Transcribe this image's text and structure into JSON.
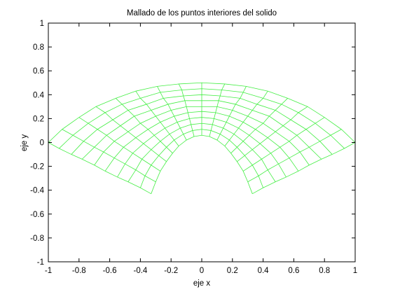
{
  "chart_data": {
    "type": "mesh",
    "title": "Mallado de los puntos interiores del solido",
    "xlabel": "eje x",
    "ylabel": "eje y",
    "color": "#44ee44",
    "xlim": [
      -1,
      1
    ],
    "ylim": [
      -1,
      1
    ],
    "xticks": [
      -1,
      -0.8,
      -0.6,
      -0.4,
      -0.2,
      0,
      0.2,
      0.4,
      0.6,
      0.8,
      1
    ],
    "yticks": [
      -1,
      -0.8,
      -0.6,
      -0.4,
      -0.2,
      0,
      0.2,
      0.4,
      0.6,
      0.8,
      1
    ],
    "x": [
      [
        -0.33,
        -0.3,
        -0.27,
        -0.23,
        -0.19,
        -0.15,
        -0.1,
        -0.05,
        0,
        0.05,
        0.1,
        0.15,
        0.19,
        0.23,
        0.27,
        0.3,
        0.33
      ],
      [
        -0.4,
        -0.37,
        -0.33,
        -0.28,
        -0.23,
        -0.18,
        -0.12,
        -0.06,
        0,
        0.06,
        0.12,
        0.18,
        0.23,
        0.28,
        0.33,
        0.37,
        0.4
      ],
      [
        -0.48,
        -0.43,
        -0.39,
        -0.33,
        -0.27,
        -0.21,
        -0.14,
        -0.07,
        0,
        0.07,
        0.14,
        0.21,
        0.27,
        0.33,
        0.39,
        0.43,
        0.48
      ],
      [
        -0.55,
        -0.5,
        -0.45,
        -0.38,
        -0.31,
        -0.24,
        -0.16,
        -0.08,
        0,
        0.08,
        0.16,
        0.24,
        0.31,
        0.38,
        0.45,
        0.5,
        0.55
      ],
      [
        -0.63,
        -0.57,
        -0.51,
        -0.43,
        -0.35,
        -0.27,
        -0.18,
        -0.09,
        0,
        0.09,
        0.18,
        0.27,
        0.35,
        0.43,
        0.51,
        0.57,
        0.63
      ],
      [
        -0.7,
        -0.64,
        -0.57,
        -0.48,
        -0.4,
        -0.3,
        -0.2,
        -0.1,
        0,
        0.1,
        0.2,
        0.3,
        0.4,
        0.48,
        0.57,
        0.64,
        0.7
      ],
      [
        -0.78,
        -0.7,
        -0.62,
        -0.53,
        -0.44,
        -0.33,
        -0.22,
        -0.11,
        0,
        0.11,
        0.22,
        0.33,
        0.44,
        0.53,
        0.62,
        0.7,
        0.78
      ],
      [
        -0.85,
        -0.77,
        -0.68,
        -0.58,
        -0.48,
        -0.36,
        -0.25,
        -0.12,
        0,
        0.12,
        0.25,
        0.36,
        0.48,
        0.58,
        0.68,
        0.77,
        0.85
      ],
      [
        -0.93,
        -0.84,
        -0.74,
        -0.63,
        -0.52,
        -0.4,
        -0.27,
        -0.13,
        0,
        0.13,
        0.27,
        0.4,
        0.52,
        0.63,
        0.74,
        0.84,
        0.93
      ],
      [
        -1,
        -0.91,
        -0.8,
        -0.69,
        -0.56,
        -0.43,
        -0.29,
        -0.15,
        0,
        0.15,
        0.29,
        0.43,
        0.56,
        0.69,
        0.8,
        0.91,
        1
      ]
    ],
    "y": [
      [
        -0.43,
        -0.33,
        -0.24,
        -0.16,
        -0.09,
        -0.03,
        0.02,
        0.05,
        0.06,
        0.05,
        0.02,
        -0.03,
        -0.09,
        -0.16,
        -0.24,
        -0.33,
        -0.43
      ],
      [
        -0.38,
        -0.28,
        -0.19,
        -0.11,
        -0.04,
        0.02,
        0.07,
        0.1,
        0.11,
        0.1,
        0.07,
        0.02,
        -0.04,
        -0.11,
        -0.19,
        -0.28,
        -0.38
      ],
      [
        -0.33,
        -0.23,
        -0.14,
        -0.06,
        0.01,
        0.07,
        0.12,
        0.15,
        0.16,
        0.15,
        0.12,
        0.07,
        0.01,
        -0.06,
        -0.14,
        -0.23,
        -0.33
      ],
      [
        -0.29,
        -0.18,
        -0.09,
        -0.01,
        0.06,
        0.12,
        0.17,
        0.2,
        0.21,
        0.2,
        0.17,
        0.12,
        0.06,
        -0.01,
        -0.09,
        -0.18,
        -0.29
      ],
      [
        -0.24,
        -0.13,
        -0.04,
        0.04,
        0.11,
        0.17,
        0.22,
        0.25,
        0.26,
        0.25,
        0.22,
        0.17,
        0.11,
        0.04,
        -0.04,
        -0.13,
        -0.24
      ],
      [
        -0.19,
        -0.08,
        0.01,
        0.09,
        0.16,
        0.22,
        0.27,
        0.3,
        0.3,
        0.3,
        0.27,
        0.22,
        0.16,
        0.09,
        0.01,
        -0.08,
        -0.19
      ],
      [
        -0.14,
        -0.04,
        0.06,
        0.14,
        0.22,
        0.27,
        0.32,
        0.35,
        0.35,
        0.35,
        0.32,
        0.27,
        0.22,
        0.14,
        0.06,
        -0.04,
        -0.14
      ],
      [
        -0.1,
        0.01,
        0.11,
        0.19,
        0.27,
        0.32,
        0.37,
        0.39,
        0.4,
        0.39,
        0.37,
        0.32,
        0.27,
        0.19,
        0.11,
        0.01,
        -0.1
      ],
      [
        -0.05,
        0.06,
        0.16,
        0.25,
        0.32,
        0.37,
        0.42,
        0.44,
        0.45,
        0.44,
        0.42,
        0.37,
        0.32,
        0.25,
        0.16,
        0.06,
        -0.05
      ],
      [
        0,
        0.11,
        0.21,
        0.3,
        0.37,
        0.43,
        0.47,
        0.49,
        0.5,
        0.49,
        0.47,
        0.43,
        0.37,
        0.3,
        0.21,
        0.11,
        0
      ]
    ]
  }
}
